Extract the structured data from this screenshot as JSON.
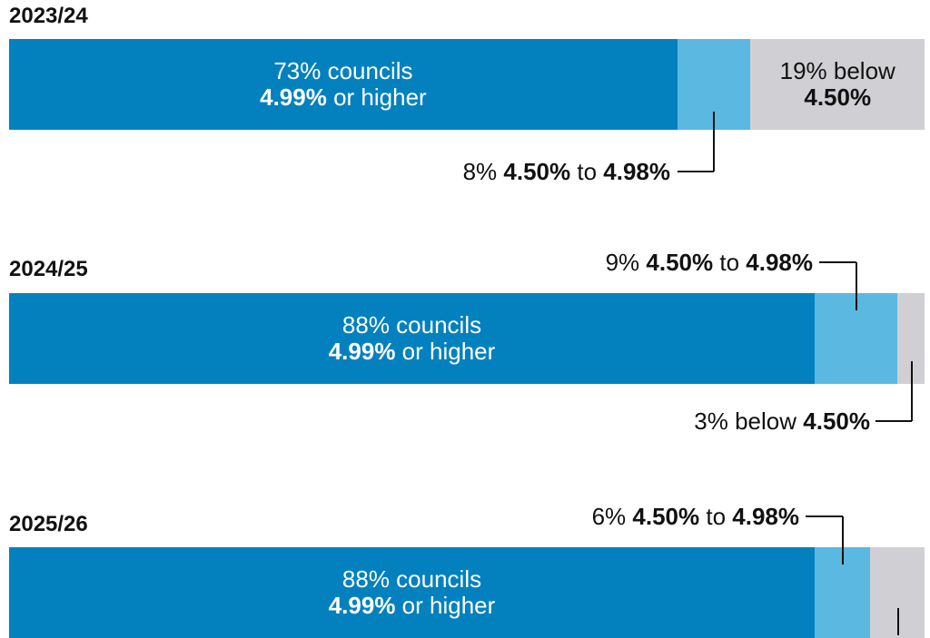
{
  "chart_data": {
    "type": "bar",
    "orientation": "horizontal",
    "stacked": true,
    "unit": "percent of councils",
    "colors": {
      "4.99% or higher": "#0281be",
      "4.50% to 4.98%": "#5bb8e0",
      "below 4.50%": "#d0d0d4"
    },
    "categories": [
      "2023/24",
      "2024/25",
      "2025/26"
    ],
    "series": [
      {
        "values": [
          73,
          88,
          88
        ]
      },
      {
        "values": [
          8,
          9,
          6
        ]
      },
      {
        "values": [
          19,
          3,
          6
        ]
      }
    ],
    "labels": [
      {
        "year": "2023/24",
        "main": {
          "line1": "73% councils",
          "bold": "4.99%",
          "rest": " or higher"
        },
        "mid": {
          "pct": "8% ",
          "b1": "4.50%",
          "to": " to ",
          "b2": "4.98%"
        },
        "low": {
          "line1": "19% below",
          "bold": "4.50%"
        }
      },
      {
        "year": "2024/25",
        "main": {
          "line1": "88% councils",
          "bold": "4.99%",
          "rest": " or higher"
        },
        "mid": {
          "pct": "9% ",
          "b1": "4.50%",
          "to": " to ",
          "b2": "4.98%"
        },
        "low": {
          "pct": "3% below ",
          "bold": "4.50%"
        }
      },
      {
        "year": "2025/26",
        "main": {
          "line1": "88% councils",
          "bold": "4.99%",
          "rest": " or higher"
        },
        "mid": {
          "pct": "6% ",
          "b1": "4.50%",
          "to": " to ",
          "b2": "4.98%"
        }
      }
    ]
  }
}
